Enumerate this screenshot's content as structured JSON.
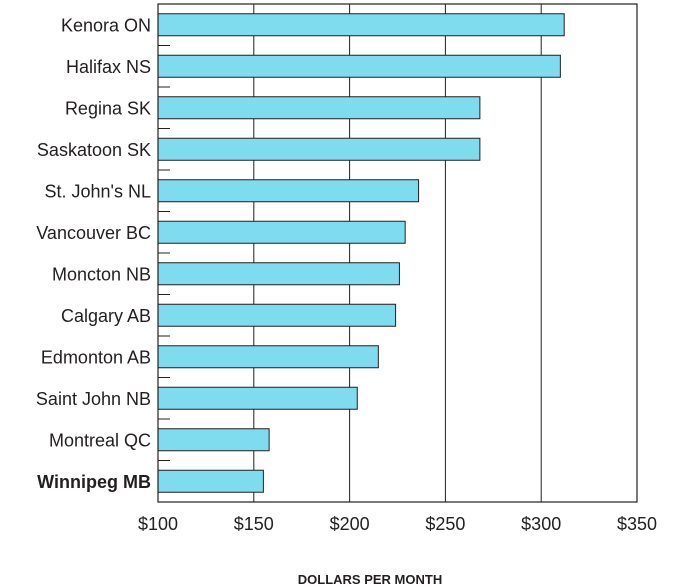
{
  "chart_data": {
    "type": "bar",
    "orientation": "horizontal",
    "categories": [
      "Kenora ON",
      "Halifax NS",
      "Regina SK",
      "Saskatoon SK",
      "St. John's NL",
      "Vancouver BC",
      "Moncton NB",
      "Calgary AB",
      "Edmonton AB",
      "Saint John NB",
      "Montreal QC",
      "Winnipeg MB"
    ],
    "highlight": "Winnipeg MB",
    "values": [
      312,
      310,
      268,
      268,
      236,
      229,
      226,
      224,
      215,
      204,
      158,
      155
    ],
    "xlabel": "DOLLARS PER MONTH",
    "xlim": [
      100,
      350
    ],
    "xticks": [
      100,
      150,
      200,
      250,
      300,
      350
    ],
    "xtick_labels": [
      "$100",
      "$150",
      "$200",
      "$250",
      "$300",
      "$350"
    ],
    "grid": "vertical",
    "bar_color": "#7fdcef",
    "edge_color": "#231f20"
  }
}
